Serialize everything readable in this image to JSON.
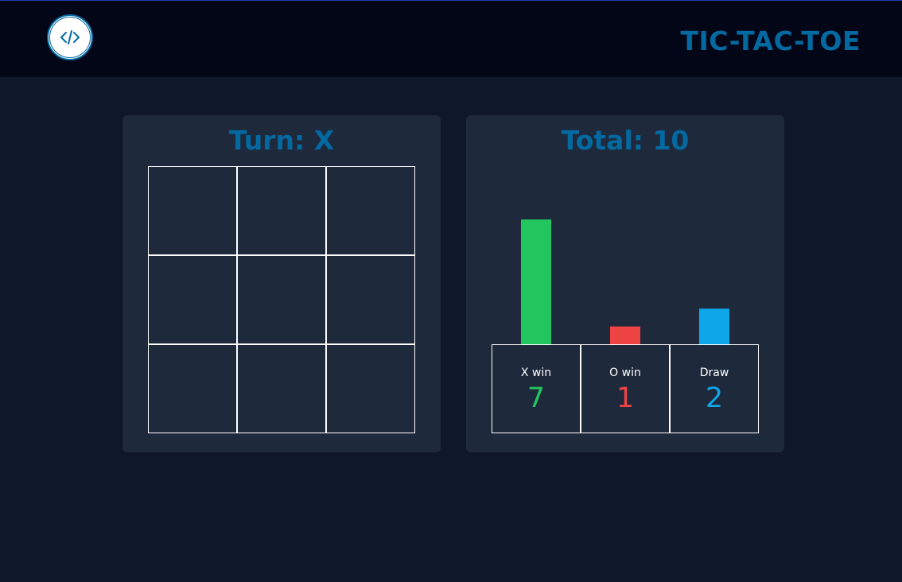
{
  "header": {
    "title": "TIC-TAC-TOE",
    "logo_icon": "code-icon"
  },
  "game": {
    "turn_label": "Turn: X",
    "board": [
      "",
      "",
      "",
      "",
      "",
      "",
      "",
      "",
      ""
    ]
  },
  "stats": {
    "total_label": "Total: 10",
    "items": [
      {
        "label": "X win",
        "value": "7"
      },
      {
        "label": "O win",
        "value": "1"
      },
      {
        "label": "Draw",
        "value": "2"
      }
    ]
  },
  "colors": {
    "background": "#0f172a",
    "header": "#020617",
    "panel": "#1e293b",
    "accent": "#0369a1",
    "x_win": "#22c55e",
    "o_win": "#ef4444",
    "draw": "#0ea5e9"
  },
  "chart_data": {
    "type": "bar",
    "categories": [
      "X win",
      "O win",
      "Draw"
    ],
    "values": [
      7,
      1,
      2
    ],
    "colors": [
      "#22c55e",
      "#ef4444",
      "#0ea5e9"
    ],
    "title": "Total: 10",
    "ylim": [
      0,
      10
    ]
  }
}
